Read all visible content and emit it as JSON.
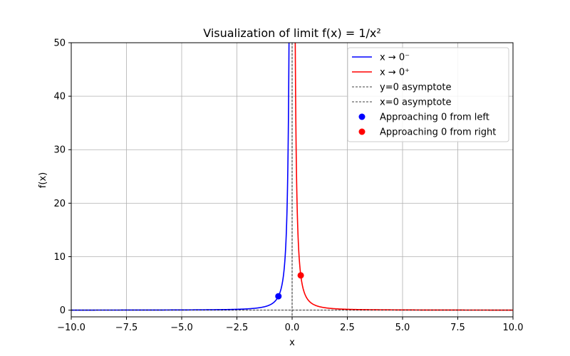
{
  "chart_data": {
    "type": "line",
    "title": "Visualization of limit f(x) = 1/x²",
    "xlabel": "x",
    "ylabel": "f(x)",
    "xlim": [
      -10,
      10
    ],
    "ylim": [
      -1.25,
      50
    ],
    "x_ticks": [
      -10,
      -7.5,
      -5,
      -2.5,
      0,
      2.5,
      5,
      7.5,
      10
    ],
    "x_tick_labels": [
      "−10.0",
      "−7.5",
      "−5.0",
      "−2.5",
      "0.0",
      "2.5",
      "5.0",
      "7.5",
      "10.0"
    ],
    "y_ticks": [
      0,
      10,
      20,
      30,
      40,
      50
    ],
    "y_tick_labels": [
      "0",
      "10",
      "20",
      "30",
      "40",
      "50"
    ],
    "grid": true,
    "legend_position": "top-right",
    "series": [
      {
        "name": "x → 0⁻",
        "function": "1/x^2",
        "domain": [
          -10,
          -0.01
        ],
        "color": "#0000ff",
        "style": "solid"
      },
      {
        "name": "x → 0⁺",
        "function": "1/x^2",
        "domain": [
          0.01,
          10
        ],
        "color": "#ff0000",
        "style": "solid"
      },
      {
        "name": "y=0 asymptote",
        "type": "hline",
        "y": 0,
        "color": "#000000",
        "style": "dashed"
      },
      {
        "name": "x=0 asymptote",
        "type": "vline",
        "x": 0,
        "color": "#000000",
        "style": "dashed"
      },
      {
        "name": "Approaching 0 from left",
        "type": "point",
        "x": -0.62,
        "y": 2.6,
        "color": "#0000ff"
      },
      {
        "name": "Approaching 0 from right",
        "type": "point",
        "x": 0.39,
        "y": 6.5,
        "color": "#ff0000"
      }
    ]
  }
}
